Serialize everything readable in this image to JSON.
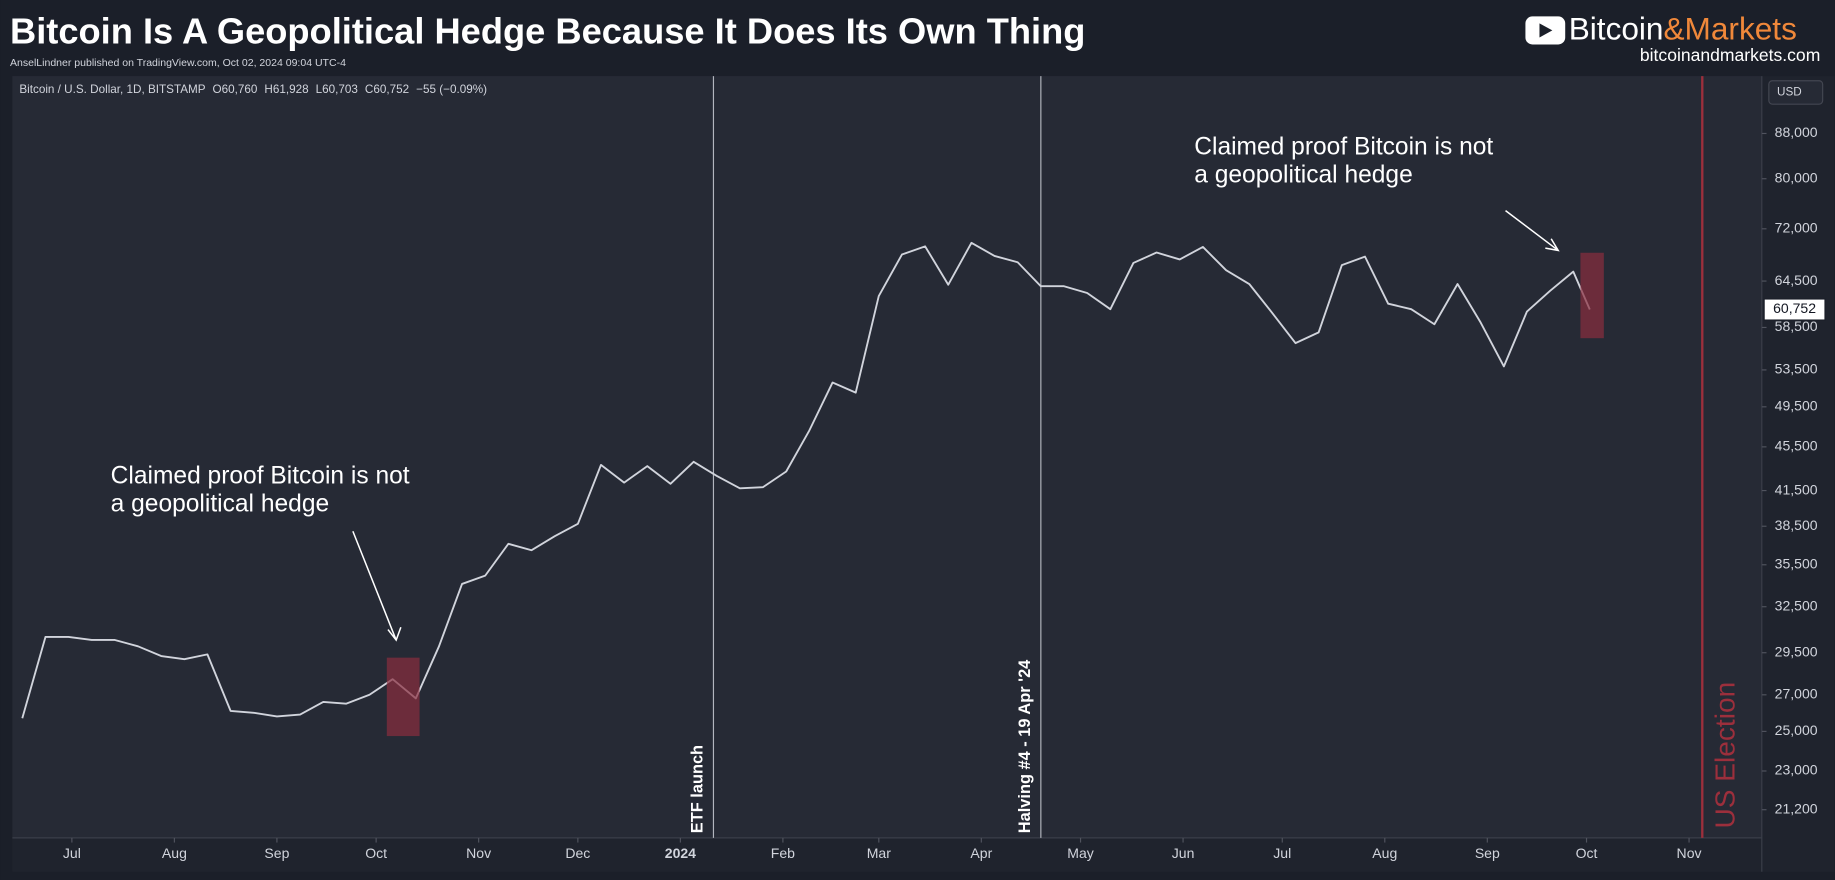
{
  "chart_data": {
    "type": "line",
    "title": "Bitcoin Is A Geopolitical Hedge Because It Does Its Own Thing",
    "subtitle": "AnselLindner published on TradingView.com, Oct 02, 2024 09:04 UTC-4",
    "brand": [
      "Bitcoin",
      "&Markets"
    ],
    "brand_url": "bitcoinandmarkets.com",
    "symbol": "Bitcoin / U.S. Dollar, 1D, BITSTAMP",
    "ohlc": [
      {
        "key": "O",
        "value": "60,760"
      },
      {
        "key": "H",
        "value": "61,928"
      },
      {
        "key": "L",
        "value": "60,703"
      },
      {
        "key": "C",
        "value": "60,752"
      }
    ],
    "change": "−55 (−0.09%)",
    "currency": "USD",
    "log_scale": true,
    "last_price": {
      "value": 60752,
      "label": "60,752"
    },
    "x": [
      "2023-06-16",
      "2023-06-23",
      "2023-06-30",
      "2023-07-07",
      "2023-07-14",
      "2023-07-21",
      "2023-07-28",
      "2023-08-04",
      "2023-08-11",
      "2023-08-18",
      "2023-08-25",
      "2023-09-01",
      "2023-09-08",
      "2023-09-15",
      "2023-09-22",
      "2023-09-29",
      "2023-10-06",
      "2023-10-13",
      "2023-10-20",
      "2023-10-27",
      "2023-11-03",
      "2023-11-10",
      "2023-11-17",
      "2023-11-24",
      "2023-12-01",
      "2023-12-08",
      "2023-12-15",
      "2023-12-22",
      "2023-12-29",
      "2024-01-05",
      "2024-01-12",
      "2024-01-19",
      "2024-01-26",
      "2024-02-02",
      "2024-02-09",
      "2024-02-16",
      "2024-02-23",
      "2024-03-01",
      "2024-03-08",
      "2024-03-15",
      "2024-03-22",
      "2024-03-29",
      "2024-04-05",
      "2024-04-12",
      "2024-04-19",
      "2024-04-26",
      "2024-05-03",
      "2024-05-10",
      "2024-05-17",
      "2024-05-24",
      "2024-05-31",
      "2024-06-07",
      "2024-06-14",
      "2024-06-21",
      "2024-06-28",
      "2024-07-05",
      "2024-07-12",
      "2024-07-19",
      "2024-07-26",
      "2024-08-02",
      "2024-08-09",
      "2024-08-16",
      "2024-08-23",
      "2024-08-30",
      "2024-09-06",
      "2024-09-13",
      "2024-09-20",
      "2024-09-27",
      "2024-10-02"
    ],
    "series": [
      {
        "name": "Bitcoin / U.S. Dollar",
        "color": "#d1d4dc",
        "values": [
          25700,
          30500,
          30500,
          30300,
          30300,
          29900,
          29300,
          29100,
          29400,
          26100,
          26000,
          25800,
          25900,
          26600,
          26500,
          27000,
          27900,
          26800,
          29900,
          34100,
          34700,
          37100,
          36600,
          37700,
          38700,
          43800,
          42200,
          43700,
          42100,
          44100,
          42800,
          41700,
          41800,
          43200,
          47100,
          52100,
          51000,
          62500,
          68200,
          69400,
          64000,
          69900,
          68000,
          67100,
          63800,
          63800,
          62900,
          60800,
          67000,
          68500,
          67500,
          69300,
          66000,
          64100,
          60300,
          56600,
          57900,
          66700,
          67900,
          61500,
          60800,
          58900,
          64100,
          59100,
          53900,
          60500,
          63200,
          65800,
          60752
        ]
      }
    ],
    "xlim": [
      "2023-06-13",
      "2024-11-23"
    ],
    "xticks": [
      {
        "value": "2023-07-01",
        "label": "Jul"
      },
      {
        "value": "2023-08-01",
        "label": "Aug"
      },
      {
        "value": "2023-09-01",
        "label": "Sep"
      },
      {
        "value": "2023-10-01",
        "label": "Oct"
      },
      {
        "value": "2023-11-01",
        "label": "Nov"
      },
      {
        "value": "2023-12-01",
        "label": "Dec"
      },
      {
        "value": "2024-01-01",
        "label": "2024"
      },
      {
        "value": "2024-02-01",
        "label": "Feb"
      },
      {
        "value": "2024-03-01",
        "label": "Mar"
      },
      {
        "value": "2024-04-01",
        "label": "Apr"
      },
      {
        "value": "2024-05-01",
        "label": "May"
      },
      {
        "value": "2024-06-01",
        "label": "Jun"
      },
      {
        "value": "2024-07-01",
        "label": "Jul"
      },
      {
        "value": "2024-08-01",
        "label": "Aug"
      },
      {
        "value": "2024-09-01",
        "label": "Sep"
      },
      {
        "value": "2024-10-01",
        "label": "Oct"
      },
      {
        "value": "2024-11-01",
        "label": "Nov"
      }
    ],
    "ylim": [
      19980,
      99300
    ],
    "yticks": [
      {
        "value": 21200,
        "label": "21,200"
      },
      {
        "value": 23000,
        "label": "23,000"
      },
      {
        "value": 25000,
        "label": "25,000"
      },
      {
        "value": 27000,
        "label": "27,000"
      },
      {
        "value": 29500,
        "label": "29,500"
      },
      {
        "value": 32500,
        "label": "32,500"
      },
      {
        "value": 35500,
        "label": "35,500"
      },
      {
        "value": 38500,
        "label": "38,500"
      },
      {
        "value": 41500,
        "label": "41,500"
      },
      {
        "value": 45500,
        "label": "45,500"
      },
      {
        "value": 49500,
        "label": "49,500"
      },
      {
        "value": 53500,
        "label": "53,500"
      },
      {
        "value": 58500,
        "label": "58,500"
      },
      {
        "value": 64500,
        "label": "64,500"
      },
      {
        "value": 72000,
        "label": "72,000"
      },
      {
        "value": 80000,
        "label": "80,000"
      },
      {
        "value": 88000,
        "label": "88,000"
      }
    ],
    "events": [
      {
        "x": "2024-01-11",
        "label": "ETF launch",
        "color": "#b2b5be"
      },
      {
        "x": "2024-04-19",
        "label": "Halving #4 - 19 Apr '24",
        "color": "#b2b5be"
      },
      {
        "x": "2024-11-05",
        "label": "US Election",
        "color": "#9c2f3c"
      }
    ],
    "annotations": [
      [
        "Claimed proof Bitcoin is not",
        "a geopolitical hedge"
      ],
      [
        "Claimed proof Bitcoin is not",
        "a geopolitical hedge"
      ]
    ]
  }
}
